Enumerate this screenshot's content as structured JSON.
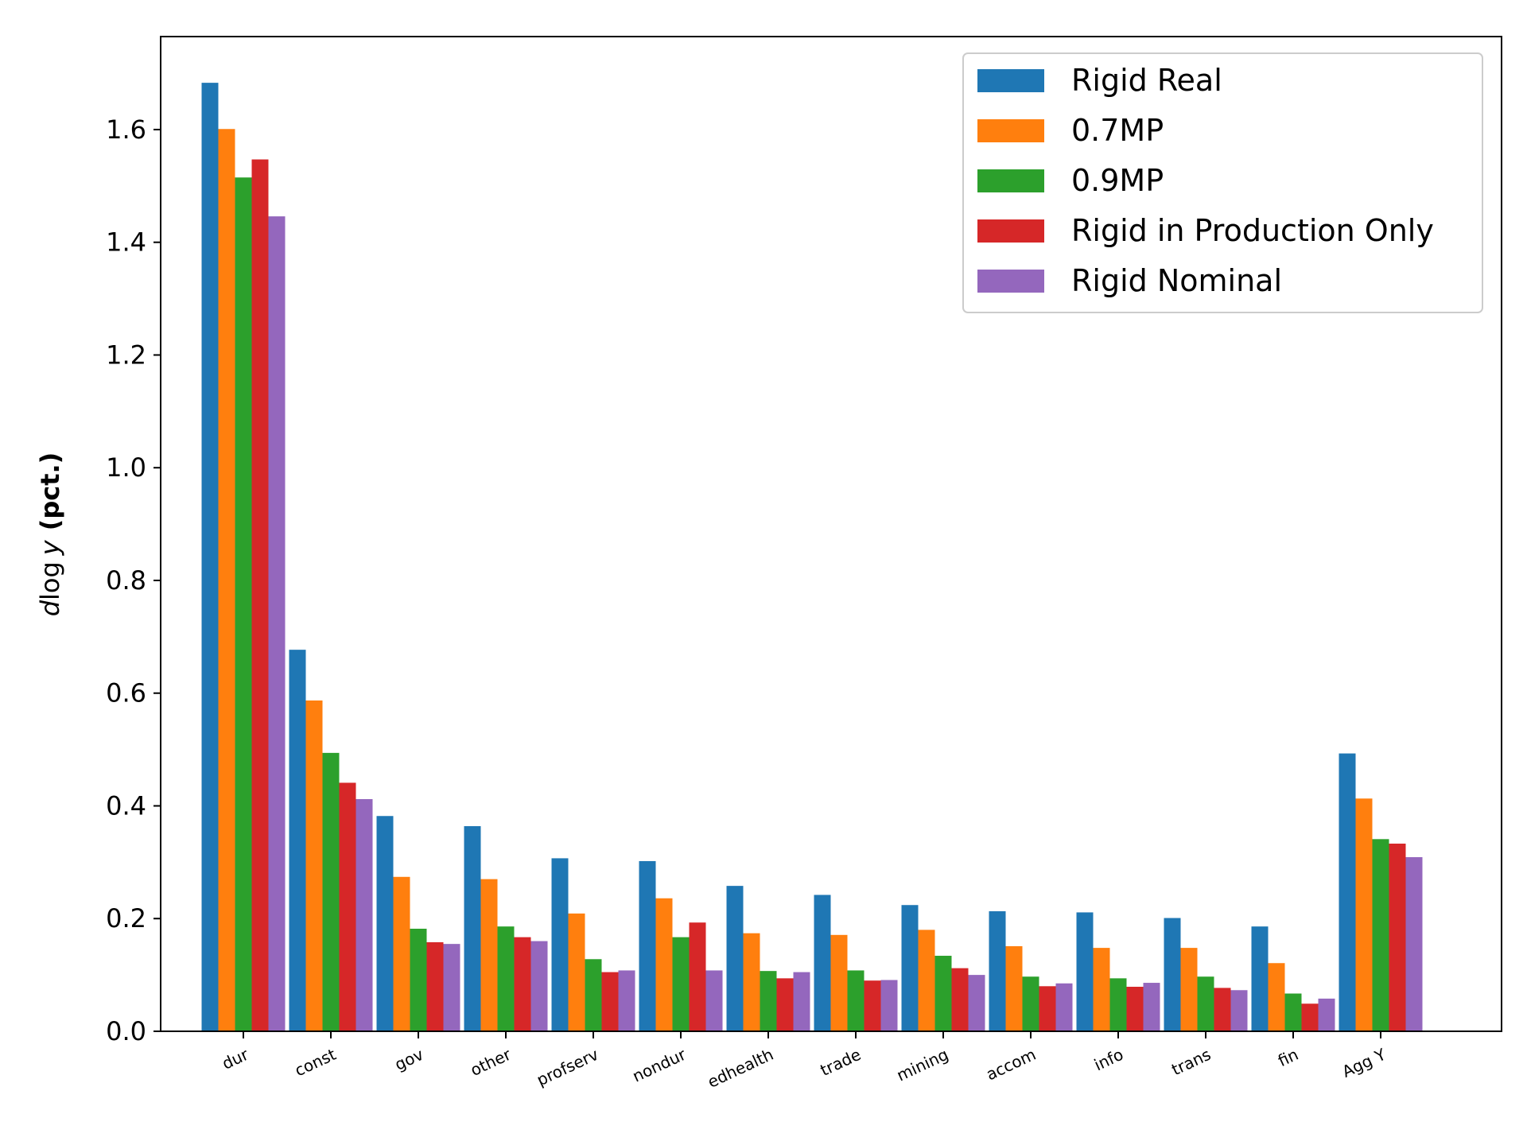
{
  "chart_data": {
    "type": "bar",
    "title": "",
    "xlabel": "",
    "ylabel_italic": "d",
    "ylabel_log": "log",
    "ylabel_var": "y",
    "ylabel_bold": "(pct.)",
    "ylim": [
      0,
      1.765
    ],
    "yticks": [
      "0.0",
      "0.2",
      "0.4",
      "0.6",
      "0.8",
      "1.0",
      "1.2",
      "1.4",
      "1.6"
    ],
    "ytick_values": [
      0,
      0.2,
      0.4,
      0.6,
      0.8,
      1.0,
      1.2,
      1.4,
      1.6
    ],
    "legend_position": "top-right",
    "categories": [
      "dur",
      "const",
      "gov",
      "other",
      "profserv",
      "nondur",
      "edhealth",
      "trade",
      "mining",
      "accom",
      "info",
      "trans",
      "fin",
      "Agg Y"
    ],
    "series": [
      {
        "name": "Rigid Real",
        "color": "#1f77b4",
        "values": [
          1.683,
          0.677,
          0.382,
          0.364,
          0.307,
          0.302,
          0.258,
          0.242,
          0.224,
          0.213,
          0.211,
          0.201,
          0.186,
          0.493
        ]
      },
      {
        "name": "0.7MP",
        "color": "#ff7f0e",
        "values": [
          1.601,
          0.587,
          0.274,
          0.27,
          0.209,
          0.236,
          0.174,
          0.171,
          0.18,
          0.151,
          0.148,
          0.148,
          0.121,
          0.413
        ]
      },
      {
        "name": "0.9MP",
        "color": "#2ca02c",
        "values": [
          1.515,
          0.494,
          0.182,
          0.186,
          0.128,
          0.167,
          0.107,
          0.108,
          0.134,
          0.097,
          0.094,
          0.097,
          0.067,
          0.341
        ]
      },
      {
        "name": "Rigid in Production Only",
        "color": "#d62728",
        "values": [
          1.547,
          0.441,
          0.158,
          0.167,
          0.105,
          0.193,
          0.094,
          0.09,
          0.112,
          0.08,
          0.079,
          0.077,
          0.049,
          0.333
        ]
      },
      {
        "name": "Rigid Nominal",
        "color": "#9467bd",
        "values": [
          1.446,
          0.412,
          0.155,
          0.16,
          0.108,
          0.108,
          0.105,
          0.091,
          0.1,
          0.085,
          0.086,
          0.073,
          0.058,
          0.309
        ]
      }
    ]
  }
}
